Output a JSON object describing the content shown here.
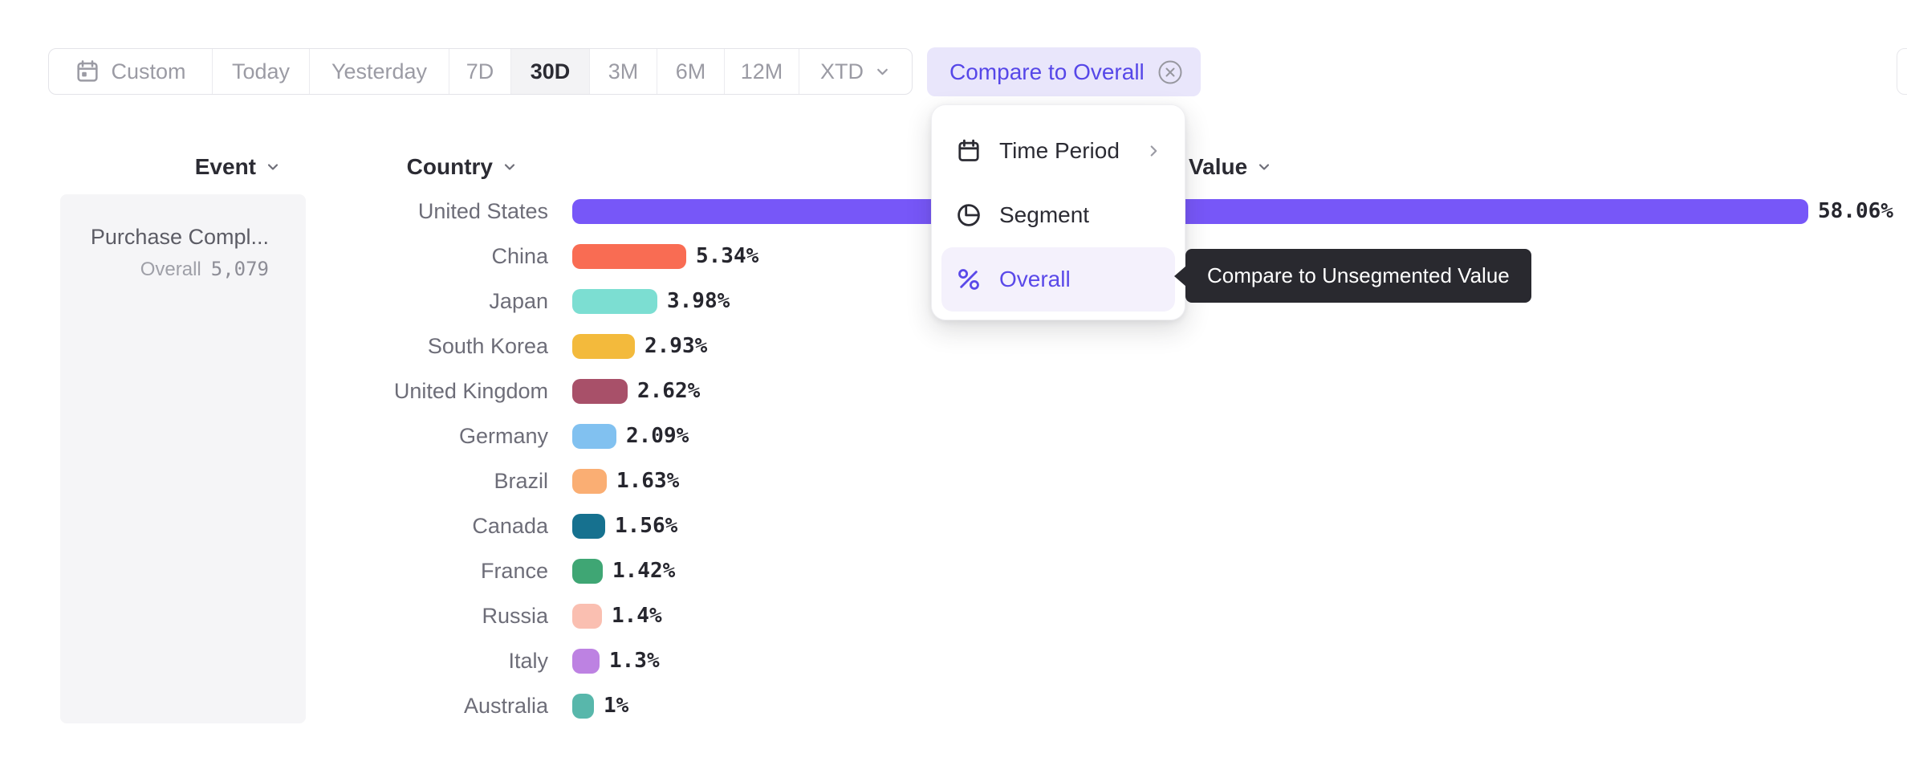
{
  "toolbar": {
    "items": [
      {
        "label": "Custom",
        "icon": "calendar-icon"
      },
      {
        "label": "Today"
      },
      {
        "label": "Yesterday"
      },
      {
        "label": "7D"
      },
      {
        "label": "30D",
        "selected": true
      },
      {
        "label": "3M"
      },
      {
        "label": "6M"
      },
      {
        "label": "12M"
      },
      {
        "label": "XTD",
        "chevron": true
      }
    ]
  },
  "compare_button": {
    "label": "Compare to Overall",
    "icon": "circle-x-icon"
  },
  "dropdown_menu": {
    "items": [
      {
        "label": "Time Period",
        "icon": "calendar-icon",
        "submenu": true
      },
      {
        "label": "Segment",
        "icon": "segment-icon"
      },
      {
        "label": "Overall",
        "icon": "percent-icon",
        "selected": true
      }
    ]
  },
  "tooltip": {
    "text": "Compare to Unsegmented Value"
  },
  "event_panel": {
    "header": "Event",
    "event_name": "Purchase Compl...",
    "overall_label": "Overall",
    "overall_value": "5,079"
  },
  "chart_data": {
    "type": "bar",
    "orientation": "horizontal",
    "title": "",
    "column_headers": {
      "category": "Country",
      "value": "Value"
    },
    "categories": [
      "United States",
      "China",
      "Japan",
      "South Korea",
      "United Kingdom",
      "Germany",
      "Brazil",
      "Canada",
      "France",
      "Russia",
      "Italy",
      "Australia"
    ],
    "values": [
      58.06,
      5.34,
      3.98,
      2.93,
      2.62,
      2.09,
      1.63,
      1.56,
      1.42,
      1.4,
      1.3,
      1.0
    ],
    "value_labels": [
      "58.06%",
      "5.34%",
      "3.98%",
      "2.93%",
      "2.62%",
      "2.09%",
      "1.63%",
      "1.56%",
      "1.42%",
      "1.4%",
      "1.3%",
      "1%"
    ],
    "bar_colors": [
      "#7757F8",
      "#F96C53",
      "#7CDED2",
      "#F3BA3C",
      "#A85069",
      "#81C1F0",
      "#FAAE73",
      "#16718F",
      "#3FA674",
      "#FABFB1",
      "#BD82E2",
      "#58B7AB"
    ],
    "xlim": [
      0,
      58.06
    ],
    "grid": false,
    "legend": "none"
  },
  "colors": {
    "accent": "#5A49E9",
    "compare_button_bg": "#E9E6FB",
    "selected_tab_bg": "#F3F3F5",
    "dropdown_selected_bg": "#F4F1FC",
    "tooltip_bg": "#29292F",
    "panel_bg": "#F5F5F7",
    "text_dark": "#2B2B33",
    "text_gray": "#9B9BA4"
  }
}
